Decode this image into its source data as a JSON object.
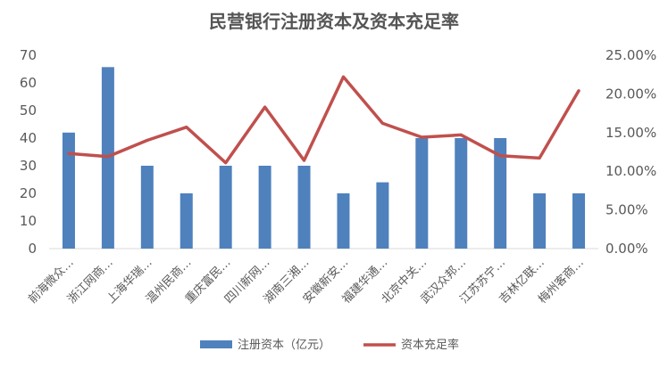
{
  "chart_data": {
    "type": "bar",
    "title": "民营银行注册资本及资本充足率",
    "categories": [
      "前海微众…",
      "浙江网商…",
      "上海华瑞…",
      "温州民商…",
      "重庆富民…",
      "四川新网…",
      "湖南三湘…",
      "安徽新安…",
      "福建华通…",
      "北京中关…",
      "武汉众邦…",
      "江苏苏宁…",
      "吉林亿联…",
      "梅州客商…"
    ],
    "series": [
      {
        "name": "注册资本（亿元）",
        "type": "bar",
        "axis": "left",
        "color": "#4F81BD",
        "values": [
          42,
          65.7,
          30,
          20,
          30,
          30,
          30,
          20,
          24,
          40,
          40,
          40,
          20,
          20
        ]
      },
      {
        "name": "资本充足率",
        "type": "line",
        "axis": "right",
        "color": "#C0504D",
        "values": [
          0.123,
          0.119,
          0.14,
          0.157,
          0.111,
          0.183,
          0.114,
          0.222,
          0.162,
          0.144,
          0.147,
          0.12,
          0.117,
          0.204
        ]
      }
    ],
    "y_left": {
      "min": 0,
      "max": 70,
      "ticks": [
        "0",
        "10",
        "20",
        "30",
        "40",
        "50",
        "60",
        "70"
      ]
    },
    "y_right": {
      "min": 0,
      "max": 0.25,
      "ticks": [
        "0.00%",
        "5.00%",
        "10.00%",
        "15.00%",
        "20.00%",
        "25.00%"
      ]
    },
    "grid": false,
    "legend_position": "bottom"
  }
}
